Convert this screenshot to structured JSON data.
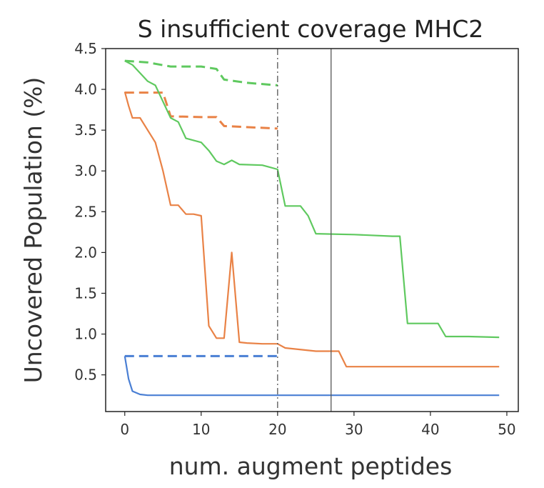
{
  "chart_data": {
    "type": "line",
    "title": "S insufficient coverage MHC2",
    "xlabel": "num. augment peptides",
    "ylabel": "Uncovered Population (%)",
    "xlim": [
      -2.5,
      51.5
    ],
    "ylim": [
      0.05,
      4.5
    ],
    "x_ticks": [
      0,
      10,
      20,
      30,
      40,
      50
    ],
    "y_ticks": [
      0.5,
      1.0,
      1.5,
      2.0,
      2.5,
      3.0,
      3.5,
      4.0,
      4.5
    ],
    "y_tick_labels": [
      "0.5",
      "1.0",
      "1.5",
      "2.0",
      "2.5",
      "3.0",
      "3.5",
      "4.0",
      "4.5"
    ],
    "grid": false,
    "legend": "none",
    "vlines": [
      {
        "x": 20,
        "style": "dashdot",
        "color": "#555555"
      },
      {
        "x": 27,
        "style": "solid",
        "color": "#555555"
      }
    ],
    "series": [
      {
        "color": "#4a7fd4",
        "style": "solid",
        "x": [
          0,
          0.5,
          1,
          2,
          3,
          5,
          10,
          20,
          30,
          49
        ],
        "y": [
          0.73,
          0.45,
          0.3,
          0.26,
          0.25,
          0.25,
          0.25,
          0.25,
          0.25,
          0.25
        ]
      },
      {
        "color": "#4a7fd4",
        "style": "dashed",
        "x": [
          0,
          5,
          10,
          15,
          20
        ],
        "y": [
          0.73,
          0.73,
          0.73,
          0.73,
          0.73
        ]
      },
      {
        "color": "#e98246",
        "style": "solid",
        "x": [
          0,
          0.5,
          1,
          2,
          3,
          4,
          5,
          6,
          7,
          8,
          9,
          10,
          11,
          12,
          13,
          14,
          15,
          16,
          18,
          20,
          21,
          25,
          27,
          28,
          29,
          35,
          45,
          49
        ],
        "y": [
          3.97,
          3.8,
          3.65,
          3.65,
          3.5,
          3.35,
          3.0,
          2.58,
          2.58,
          2.47,
          2.47,
          2.45,
          1.1,
          0.95,
          0.95,
          2.0,
          0.9,
          0.89,
          0.88,
          0.88,
          0.83,
          0.79,
          0.79,
          0.79,
          0.6,
          0.6,
          0.6,
          0.6
        ]
      },
      {
        "color": "#e98246",
        "style": "dashed",
        "x": [
          0,
          5,
          6,
          10,
          12,
          13,
          20
        ],
        "y": [
          3.96,
          3.96,
          3.67,
          3.66,
          3.66,
          3.55,
          3.52
        ]
      },
      {
        "color": "#5fc95f",
        "style": "solid",
        "x": [
          0,
          1,
          2,
          3,
          4,
          5,
          6,
          7,
          8,
          10,
          11,
          12,
          13,
          14,
          15,
          18,
          20,
          21,
          23,
          24,
          25,
          30,
          35,
          36,
          37,
          41,
          42,
          45,
          49
        ],
        "y": [
          4.35,
          4.3,
          4.2,
          4.1,
          4.05,
          3.85,
          3.65,
          3.6,
          3.4,
          3.35,
          3.25,
          3.12,
          3.08,
          3.13,
          3.08,
          3.07,
          3.02,
          2.57,
          2.57,
          2.45,
          2.23,
          2.22,
          2.2,
          2.2,
          1.13,
          1.13,
          0.97,
          0.97,
          0.96
        ]
      },
      {
        "color": "#5fc95f",
        "style": "dashed",
        "x": [
          0,
          3,
          6,
          10,
          12,
          13,
          16,
          20
        ],
        "y": [
          4.35,
          4.33,
          4.28,
          4.28,
          4.25,
          4.12,
          4.08,
          4.05
        ]
      }
    ]
  }
}
